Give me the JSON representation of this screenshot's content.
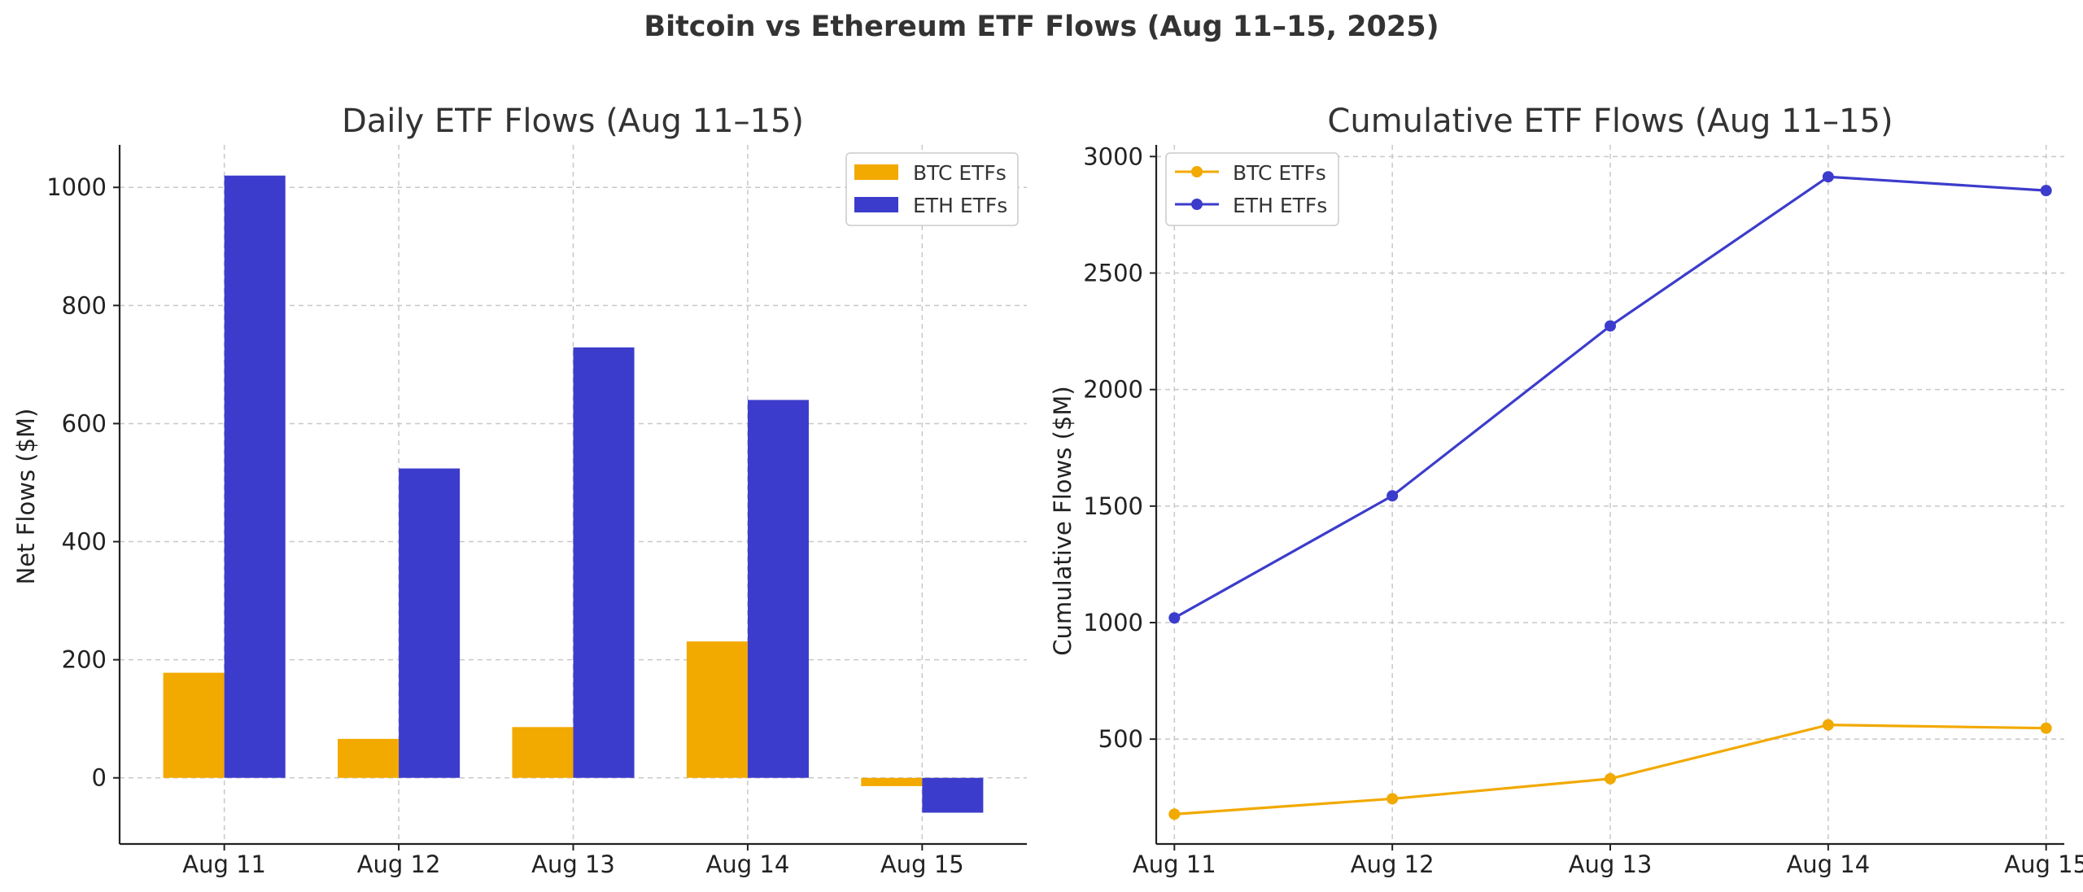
{
  "figure": {
    "title": "Bitcoin vs Ethereum ETF Flows (Aug 11–15, 2025)"
  },
  "colors": {
    "btc": "#F2A900",
    "eth": "#3C3CCC"
  },
  "chart_data": [
    {
      "type": "bar",
      "title": "Daily ETF Flows (Aug 11–15)",
      "xlabel": "",
      "ylabel": "Net Flows ($M)",
      "categories": [
        "Aug 11",
        "Aug 12",
        "Aug 13",
        "Aug 14",
        "Aug 15"
      ],
      "series": [
        {
          "name": "BTC ETFs",
          "values": [
            178,
            66,
            86,
            231,
            -14
          ]
        },
        {
          "name": "ETH ETFs",
          "values": [
            1020,
            524,
            729,
            640,
            -59
          ]
        }
      ],
      "ylim": [
        -112,
        1072
      ],
      "yticks": [
        0,
        200,
        400,
        600,
        800,
        1000
      ],
      "grid": true,
      "legend": "top-right"
    },
    {
      "type": "line",
      "title": "Cumulative ETF Flows (Aug 11–15)",
      "xlabel": "",
      "ylabel": "Cumulative Flows ($M)",
      "categories": [
        "Aug 11",
        "Aug 12",
        "Aug 13",
        "Aug 14",
        "Aug 15"
      ],
      "series": [
        {
          "name": "BTC ETFs",
          "values": [
            178,
            244,
            330,
            561,
            547
          ]
        },
        {
          "name": "ETH ETFs",
          "values": [
            1020,
            1544,
            2273,
            2913,
            2854
          ]
        }
      ],
      "ylim": [
        50,
        3050
      ],
      "yticks": [
        500,
        1000,
        1500,
        2000,
        2500,
        3000
      ],
      "grid": true,
      "legend": "top-left"
    }
  ]
}
